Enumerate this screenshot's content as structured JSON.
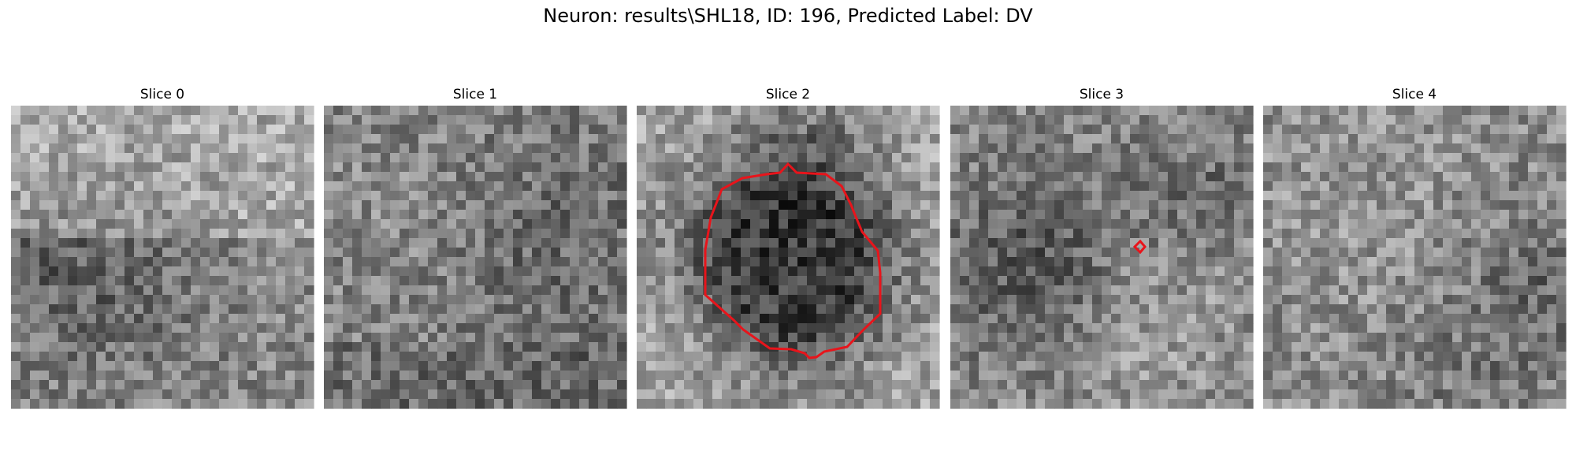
{
  "figure": {
    "title": "Neuron: results\\SHL18, ID: 196, Predicted Label: DV"
  },
  "panels": [
    {
      "title": "Slice 0",
      "texture": "bright upper area, darker horizontal band across lower middle"
    },
    {
      "title": "Slice 1",
      "texture": "mottled grey, darker lower right"
    },
    {
      "title": "Slice 2",
      "texture": "dark round cell body outlined in red, bright surround"
    },
    {
      "title": "Slice 3",
      "texture": "dark centre left region with small red marker"
    },
    {
      "title": "Slice 4",
      "texture": "mottled grey, darker right edge"
    }
  ],
  "overlay_color": "#e8141b"
}
